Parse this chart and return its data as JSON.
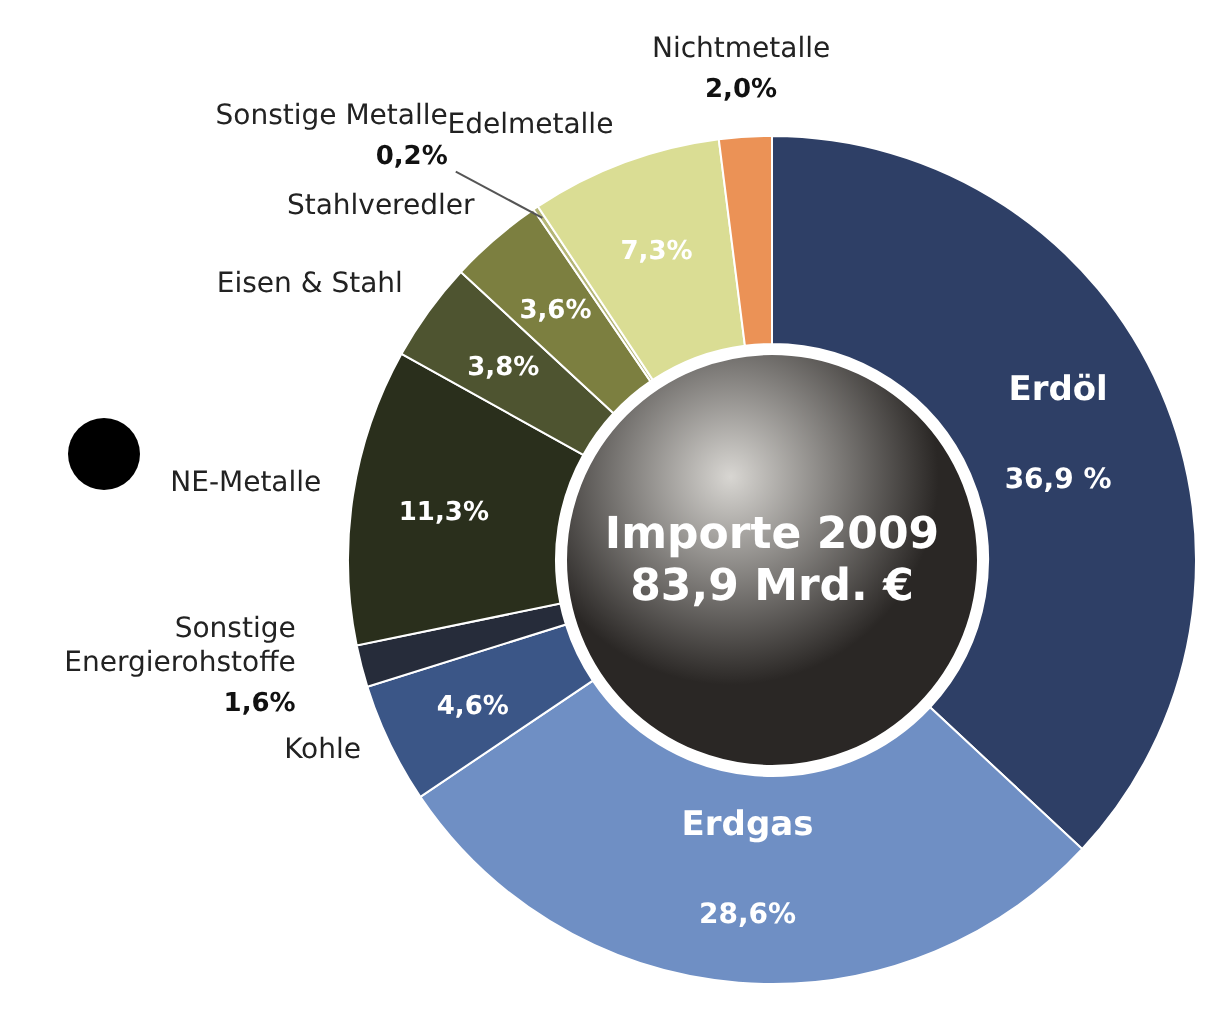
{
  "chart_data": {
    "type": "donut",
    "title": "Importe 2009",
    "subtitle": "83,9 Mrd. €",
    "categories": [
      "Erdöl",
      "Erdgas",
      "Kohle",
      "Sonstige Energierohstoffe",
      "NE-Metalle",
      "Eisen & Stahl",
      "Stahlveredler",
      "Sonstige Metalle",
      "Edelmetalle",
      "Nichtmetalle"
    ],
    "values": [
      36.9,
      28.6,
      4.6,
      1.6,
      11.3,
      3.8,
      3.6,
      0.2,
      7.3,
      2.0
    ],
    "value_labels": [
      "36,9 %",
      "28,6%",
      "4,6%",
      "1,6%",
      "11,3%",
      "3,8%",
      "3,6%",
      "0,2%",
      "7,3%",
      "2,0%"
    ],
    "colors": [
      "#2e3f66",
      "#6f8fc4",
      "#3b5687",
      "#262c3a",
      "#2a2f1c",
      "#4e5430",
      "#7c7f40",
      "#b5b677",
      "#dadd94",
      "#eb9256"
    ]
  }
}
